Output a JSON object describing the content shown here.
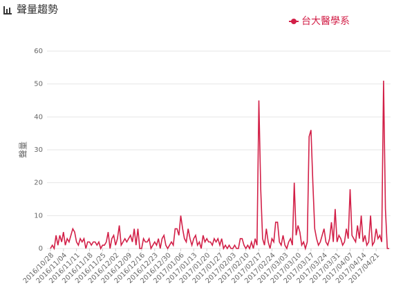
{
  "chart_data": {
    "type": "line",
    "title": "聲量趨勢",
    "y_label": "聲量",
    "categories": [
      "2016/10/28",
      null,
      null,
      null,
      null,
      null,
      null,
      "2016/11/04",
      null,
      null,
      null,
      null,
      null,
      null,
      "2016/11/11",
      null,
      null,
      null,
      null,
      null,
      null,
      "2016/11/18",
      null,
      null,
      null,
      null,
      null,
      null,
      "2016/11/25",
      null,
      null,
      null,
      null,
      null,
      null,
      "2016/12/02",
      null,
      null,
      null,
      null,
      null,
      null,
      "2016/12/09",
      null,
      null,
      null,
      null,
      null,
      null,
      "2016/12/16",
      null,
      null,
      null,
      null,
      null,
      null,
      "2016/12/23",
      null,
      null,
      null,
      null,
      null,
      null,
      "2016/12/30",
      null,
      null,
      null,
      null,
      null,
      null,
      "2017/01/06",
      null,
      null,
      null,
      null,
      null,
      null,
      "2017/01/13",
      null,
      null,
      null,
      null,
      null,
      null,
      "2017/01/20",
      null,
      null,
      null,
      null,
      null,
      null,
      "2017/01/27",
      null,
      null,
      null,
      null,
      null,
      null,
      "2017/02/03",
      null,
      null,
      null,
      null,
      null,
      null,
      "2017/02/10",
      null,
      null,
      null,
      null,
      null,
      null,
      "2017/02/17",
      null,
      null,
      null,
      null,
      null,
      null,
      "2017/02/24",
      null,
      null,
      null,
      null,
      null,
      null,
      "2017/03/03",
      null,
      null,
      null,
      null,
      null,
      null,
      "2017/03/10",
      null,
      null,
      null,
      null,
      null,
      null,
      "2017/03/17",
      null,
      null,
      null,
      null,
      null,
      null,
      "2017/03/24",
      null,
      null,
      null,
      null,
      null,
      null,
      "2017/03/31",
      null,
      null,
      null,
      null,
      null,
      null,
      "2017/04/07",
      null,
      null,
      null,
      null,
      null,
      null,
      "2017/04/14",
      null,
      null,
      null,
      null,
      null,
      null,
      "2017/04/21",
      null,
      null,
      null,
      null,
      null,
      null,
      null
    ],
    "series": [
      {
        "name": "台大醫學系",
        "color": "#d21f47",
        "values": [
          0,
          1,
          0,
          4,
          1,
          4,
          2,
          5,
          1,
          3,
          2,
          4,
          6,
          5,
          2,
          1,
          3,
          2,
          3,
          0,
          2,
          2,
          1,
          2,
          2,
          1,
          2,
          0,
          1,
          1,
          2,
          5,
          0,
          3,
          4,
          1,
          3,
          7,
          1,
          2,
          3,
          2,
          3,
          4,
          2,
          6,
          1,
          6,
          0,
          0,
          3,
          2,
          2,
          3,
          0,
          1,
          2,
          1,
          3,
          0,
          3,
          4,
          1,
          0,
          1,
          2,
          1,
          6,
          6,
          4,
          10,
          6,
          3,
          2,
          6,
          3,
          1,
          3,
          4,
          1,
          2,
          0,
          4,
          2,
          3,
          2,
          2,
          1,
          3,
          2,
          3,
          1,
          3,
          0,
          1,
          0,
          1,
          0,
          0,
          1,
          0,
          0,
          3,
          3,
          1,
          0,
          1,
          0,
          2,
          0,
          3,
          1,
          45,
          18,
          3,
          1,
          6,
          2,
          0,
          3,
          2,
          8,
          8,
          2,
          1,
          4,
          1,
          0,
          2,
          3,
          1,
          20,
          4,
          7,
          5,
          1,
          2,
          0,
          2,
          34,
          36,
          20,
          6,
          3,
          1,
          2,
          4,
          6,
          2,
          1,
          3,
          8,
          2,
          12,
          2,
          4,
          3,
          1,
          2,
          6,
          3,
          18,
          4,
          3,
          2,
          7,
          3,
          10,
          2,
          4,
          1,
          2,
          10,
          1,
          2,
          6,
          3,
          4,
          2,
          51,
          12,
          0,
          0
        ]
      }
    ],
    "ylim": [
      0,
      60
    ],
    "yticks": [
      0,
      10,
      20,
      30,
      40,
      50,
      60
    ],
    "grid": true
  }
}
